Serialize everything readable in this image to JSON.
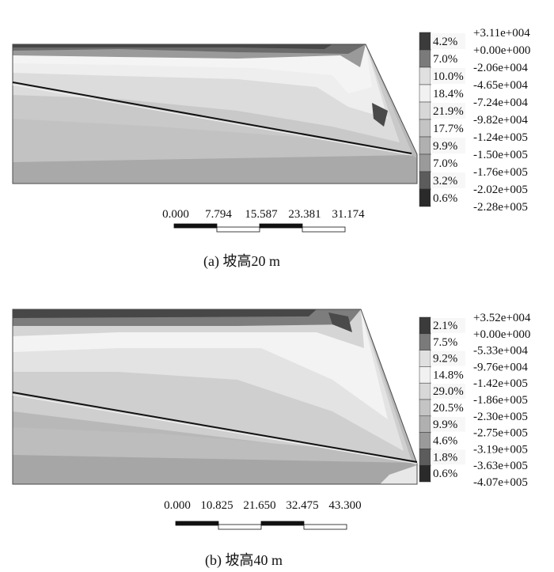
{
  "colors": {
    "darkest": "#3b3b3b",
    "dark": "#6f6f6f",
    "mid": "#9b9b9b",
    "midlight": "#b7b7b7",
    "light": "#d2d2d2",
    "lighter": "#e4e4e4",
    "lightest": "#f1f1f1",
    "outline": "#4a4a4a",
    "slip_line": "#111111"
  },
  "panels": [
    {
      "caption": "(a) 坡高20 m",
      "legend": {
        "percents": [
          "4.2%",
          "7.0%",
          "10.0%",
          "18.4%",
          "21.9%",
          "17.7%",
          "9.9%",
          "7.0%",
          "3.2%",
          "0.6%"
        ],
        "values": [
          "+3.11e+004",
          "+0.00e+000",
          "-2.06e+004",
          "-4.65e+004",
          "-7.24e+004",
          "-9.82e+004",
          "-1.24e+005",
          "-1.50e+005",
          "-1.76e+005",
          "-2.02e+005",
          "-2.28e+005"
        ],
        "swatch_colors": [
          "#3b3b3b",
          "#7a7a7a",
          "#e0e0e0",
          "#f1f1f1",
          "#d8d8d8",
          "#c4c4c4",
          "#b0b0b0",
          "#9a9a9a",
          "#5c5c5c",
          "#2a2a2a"
        ]
      },
      "scale": {
        "ticks": [
          "0.000",
          "7.794",
          "15.587",
          "23.381",
          "31.174"
        ]
      }
    },
    {
      "caption": "(b) 坡高40 m",
      "legend": {
        "percents": [
          "2.1%",
          "7.5%",
          "9.2%",
          "14.8%",
          "29.0%",
          "20.5%",
          "9.9%",
          "4.6%",
          "1.8%",
          "0.6%"
        ],
        "values": [
          "+3.52e+004",
          "+0.00e+000",
          "-5.33e+004",
          "-9.76e+004",
          "-1.42e+005",
          "-1.86e+005",
          "-2.30e+005",
          "-2.75e+005",
          "-3.19e+005",
          "-3.63e+005",
          "-4.07e+005"
        ],
        "swatch_colors": [
          "#3b3b3b",
          "#7a7a7a",
          "#e0e0e0",
          "#f1f1f1",
          "#d8d8d8",
          "#c4c4c4",
          "#b0b0b0",
          "#9a9a9a",
          "#5c5c5c",
          "#2a2a2a"
        ]
      },
      "scale": {
        "ticks": [
          "0.000",
          "10.825",
          "21.650",
          "32.475",
          "43.300"
        ]
      }
    }
  ]
}
